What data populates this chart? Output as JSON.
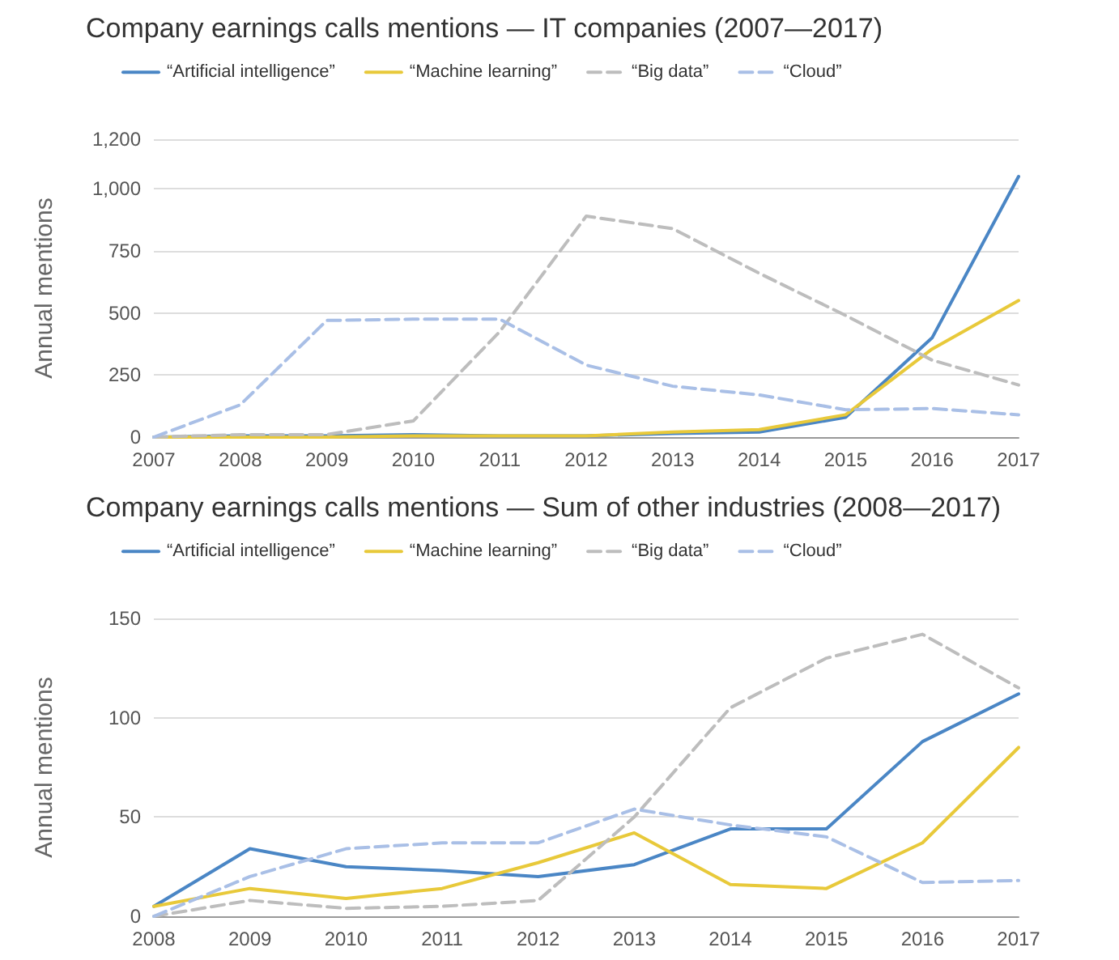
{
  "chart_data": [
    {
      "type": "line",
      "title": "Company earnings calls mentions — IT companies (2007—2017)",
      "ylabel": "Annual mentions",
      "categories": [
        "2007",
        "2008",
        "2009",
        "2010",
        "2011",
        "2012",
        "2013",
        "2014",
        "2015",
        "2016",
        "2017"
      ],
      "series": [
        {
          "name": "“Artificial intelligence”",
          "color": "#4a86c5",
          "line_style": "solid",
          "values": [
            0,
            5,
            5,
            10,
            5,
            5,
            15,
            20,
            80,
            400,
            1050
          ]
        },
        {
          "name": "“Machine learning”",
          "color": "#e8c93a",
          "line_style": "solid",
          "values": [
            0,
            0,
            0,
            5,
            5,
            5,
            20,
            30,
            90,
            355,
            550
          ]
        },
        {
          "name": "“Big data”",
          "color": "#bdbdbd",
          "line_style": "dashed",
          "values": [
            0,
            10,
            10,
            65,
            425,
            890,
            840,
            660,
            490,
            310,
            210
          ]
        },
        {
          "name": "“Cloud”",
          "color": "#a9bfe6",
          "line_style": "dashed",
          "values": [
            0,
            130,
            470,
            475,
            475,
            290,
            205,
            170,
            110,
            115,
            90
          ]
        }
      ],
      "ylim": [
        0,
        1200
      ],
      "yticks": [
        0,
        250,
        500,
        750,
        {
          "value": 1000,
          "label": "1,000"
        },
        {
          "value": 1200,
          "label": "1,200"
        }
      ],
      "grid": "y",
      "legend": "top",
      "marker": "none"
    },
    {
      "type": "line",
      "title": "Company earnings calls mentions — Sum of other industries (2008—2017)",
      "ylabel": "Annual mentions",
      "categories": [
        "2008",
        "2009",
        "2010",
        "2011",
        "2012",
        "2013",
        "2014",
        "2015",
        "2016",
        "2017"
      ],
      "series": [
        {
          "name": "“Artificial intelligence”",
          "color": "#4a86c5",
          "line_style": "solid",
          "values": [
            5,
            34,
            25,
            23,
            20,
            26,
            44,
            44,
            88,
            112
          ]
        },
        {
          "name": "“Machine learning”",
          "color": "#e8c93a",
          "line_style": "solid",
          "values": [
            5,
            14,
            9,
            14,
            27,
            42,
            16,
            14,
            37,
            85
          ]
        },
        {
          "name": "“Big data”",
          "color": "#bdbdbd",
          "line_style": "dashed",
          "values": [
            0,
            8,
            4,
            5,
            8,
            50,
            105,
            130,
            142,
            115
          ]
        },
        {
          "name": "“Cloud”",
          "color": "#a9bfe6",
          "line_style": "dashed",
          "values": [
            0,
            20,
            34,
            37,
            37,
            54,
            46,
            40,
            17,
            18
          ]
        }
      ],
      "ylim": [
        0,
        150
      ],
      "yticks": [
        0,
        50,
        100,
        150
      ],
      "grid": "y",
      "legend": "top",
      "marker": "none"
    }
  ]
}
